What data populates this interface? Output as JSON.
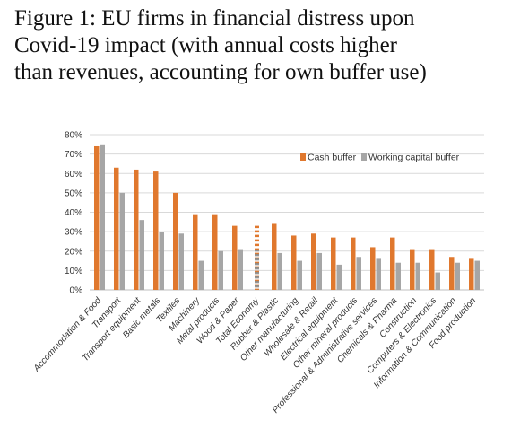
{
  "title_lines": [
    "Figure 1: EU firms in financial distress upon",
    "Covid-19 impact (with annual costs higher",
    "than revenues, accounting for own buffer use)"
  ],
  "colors": {
    "cash": "#E0782E",
    "working": "#A6A6A6",
    "grid": "#D9D9D9",
    "axis": "#BFBFBF"
  },
  "chart_data": {
    "type": "bar",
    "title": "Figure 1: EU firms in financial distress upon Covid-19 impact (with annual costs higher than revenues, accounting for own buffer use)",
    "xlabel": "",
    "ylabel": "",
    "ylim": [
      0,
      80
    ],
    "y_ticks": [
      "0%",
      "10%",
      "20%",
      "30%",
      "40%",
      "50%",
      "60%",
      "70%",
      "80%"
    ],
    "grid": true,
    "legend_position": "top-right",
    "categories": [
      "Accommodation & Food",
      "Transport",
      "Transport equipment",
      "Basic metals",
      "Textiles",
      "Machinery",
      "Metal products",
      "Wood & Paper",
      "Total Economy",
      "Rubber & Plastic",
      "Other manufacturing",
      "Wholesale & Retail",
      "Electrical equipment",
      "Other mineral products",
      "Professional & Administrative services",
      "Chemicals & Pharma",
      "Construction",
      "Computers & Electronics",
      "Information & Communication",
      "Food production"
    ],
    "highlight_category": "Total Economy",
    "series": [
      {
        "name": "Cash buffer",
        "values": [
          74,
          63,
          62,
          61,
          50,
          39,
          39,
          33,
          33,
          34,
          28,
          29,
          27,
          27,
          22,
          27,
          21,
          21,
          17,
          16
        ]
      },
      {
        "name": "Working capital buffer",
        "values": [
          75,
          50,
          36,
          30,
          29,
          15,
          20,
          21,
          22,
          19,
          15,
          19,
          13,
          17,
          16,
          14,
          14,
          9,
          14,
          15
        ]
      }
    ]
  }
}
